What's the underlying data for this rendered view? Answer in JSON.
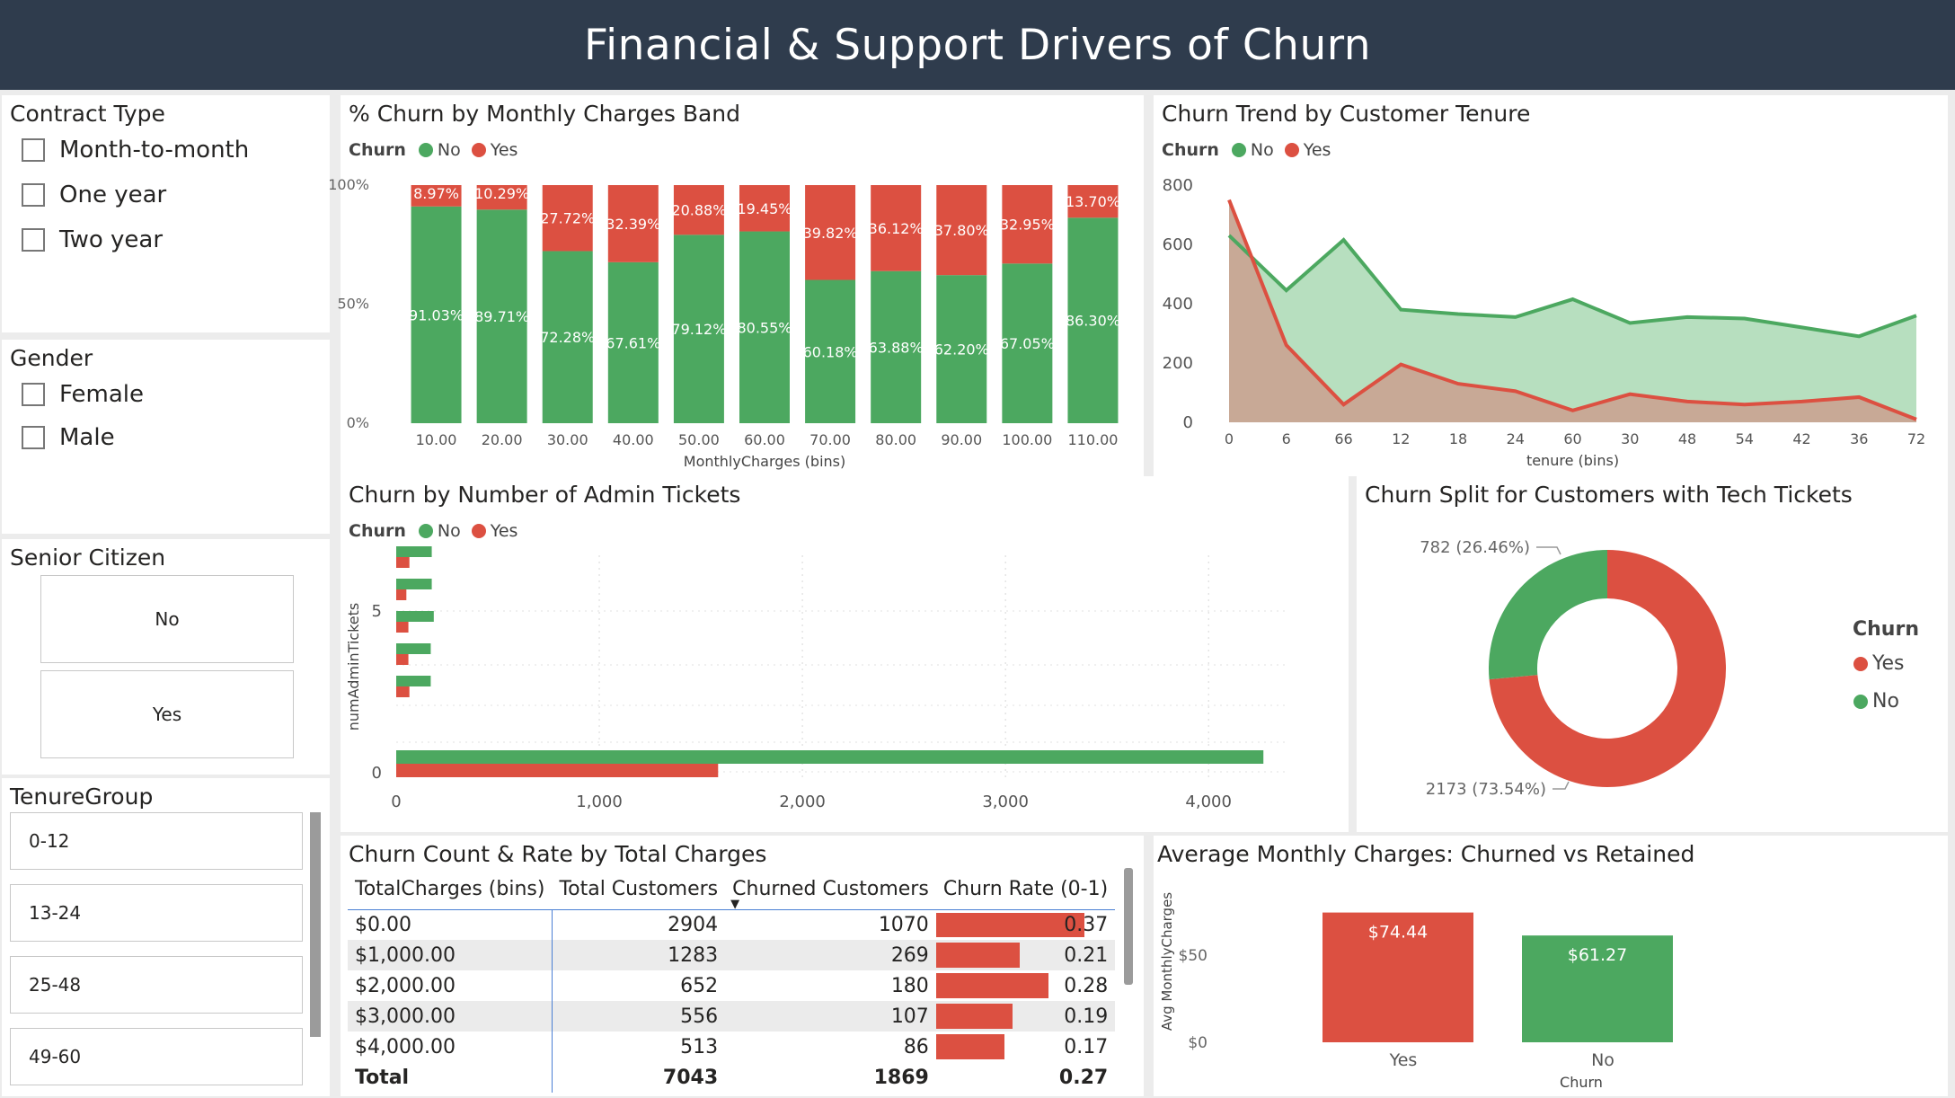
{
  "title": "Financial & Support Drivers of Churn",
  "colors": {
    "no": "#4ca860",
    "yes": "#dc5041",
    "header": "#2f3c4d",
    "no_area": "#b7dfbf",
    "yes_area": "#c8a594"
  },
  "filters": {
    "contract": {
      "title": "Contract Type",
      "options": [
        "Month-to-month",
        "One year",
        "Two year"
      ]
    },
    "gender": {
      "title": "Gender",
      "options": [
        "Female",
        "Male"
      ]
    },
    "senior": {
      "title": "Senior Citizen",
      "options": [
        "No",
        "Yes"
      ]
    },
    "tenure": {
      "title": "TenureGroup",
      "options": [
        "0-12",
        "13-24",
        "25-48",
        "49-60"
      ]
    }
  },
  "legend": {
    "title": "Churn",
    "no": "No",
    "yes": "Yes"
  },
  "chart_data": [
    {
      "id": "monthly_band",
      "type": "bar",
      "stacked": "100%",
      "title": "% Churn by Monthly Charges Band",
      "xlabel": "MonthlyCharges (bins)",
      "ylabel": "",
      "yticks": [
        "0%",
        "50%",
        "100%"
      ],
      "categories": [
        "10.00",
        "20.00",
        "30.00",
        "40.00",
        "50.00",
        "60.00",
        "70.00",
        "80.00",
        "90.00",
        "100.00",
        "110.00"
      ],
      "series": [
        {
          "name": "No",
          "values": [
            91.03,
            89.71,
            72.28,
            67.61,
            79.12,
            80.55,
            60.18,
            63.88,
            62.2,
            67.05,
            86.3
          ],
          "labels": [
            "91.03%",
            "89.71%",
            "72.28%",
            "67.61%",
            "79.12%",
            "80.55%",
            "60.18%",
            "63.88%",
            "62.20%",
            "67.05%",
            "86.30%"
          ]
        },
        {
          "name": "Yes",
          "values": [
            8.97,
            10.29,
            27.72,
            32.39,
            20.88,
            19.45,
            39.82,
            36.12,
            37.8,
            32.95,
            13.7
          ],
          "labels": [
            "8.97%",
            "10.29%",
            "27.72%",
            "32.39%",
            "20.88%",
            "19.45%",
            "39.82%",
            "36.12%",
            "37.80%",
            "32.95%",
            "13.70%"
          ]
        }
      ]
    },
    {
      "id": "tenure_trend",
      "type": "area",
      "title": "Churn Trend by Customer Tenure",
      "xlabel": "tenure (bins)",
      "ylabel": "",
      "categories": [
        "0",
        "6",
        "66",
        "12",
        "18",
        "24",
        "60",
        "30",
        "48",
        "54",
        "42",
        "36",
        "72"
      ],
      "ylim": [
        0,
        800
      ],
      "yticks": [
        "0",
        "200",
        "400",
        "600",
        "800"
      ],
      "series": [
        {
          "name": "No",
          "values": [
            630,
            445,
            615,
            380,
            365,
            355,
            415,
            335,
            355,
            350,
            320,
            290,
            360
          ]
        },
        {
          "name": "Yes",
          "values": [
            750,
            260,
            60,
            195,
            130,
            105,
            40,
            95,
            70,
            60,
            70,
            85,
            10
          ]
        }
      ]
    },
    {
      "id": "admin_tickets",
      "type": "bar",
      "orientation": "horizontal",
      "title": "Churn by Number of Admin Tickets",
      "xlabel": "",
      "ylabel": "numAdminTickets",
      "xlim": [
        0,
        4300
      ],
      "xticks": [
        "0",
        "1,000",
        "2,000",
        "3,000",
        "4,000"
      ],
      "yticks": [
        "0",
        "5"
      ],
      "categories": [
        0,
        1,
        2,
        3,
        4,
        5
      ],
      "series": [
        {
          "name": "No",
          "values": [
            4270,
            170,
            170,
            185,
            175,
            175
          ]
        },
        {
          "name": "Yes",
          "values": [
            1585,
            65,
            60,
            60,
            50,
            65
          ]
        }
      ]
    },
    {
      "id": "tech_tickets",
      "type": "pie",
      "donut": true,
      "title": "Churn Split for Customers with Tech Tickets",
      "slices": [
        {
          "name": "Yes",
          "value": 2173,
          "label": "2173 (73.54%)"
        },
        {
          "name": "No",
          "value": 782,
          "label": "782 (26.46%)"
        }
      ]
    },
    {
      "id": "total_charges_table",
      "type": "table",
      "title": "Churn Count & Rate by Total Charges",
      "columns": [
        "TotalCharges (bins)",
        "Total Customers",
        "Churned Customers",
        "Churn Rate (0-1)"
      ],
      "rows": [
        [
          "$0.00",
          2904,
          1070,
          0.37
        ],
        [
          "$1,000.00",
          1283,
          269,
          0.21
        ],
        [
          "$2,000.00",
          652,
          180,
          0.28
        ],
        [
          "$3,000.00",
          556,
          107,
          0.19
        ],
        [
          "$4,000.00",
          513,
          86,
          0.17
        ]
      ],
      "total": [
        "Total",
        7043,
        1869,
        0.27
      ]
    },
    {
      "id": "avg_monthly",
      "type": "bar",
      "title": "Average Monthly Charges: Churned vs Retained",
      "xlabel": "Churn",
      "ylabel": "Avg MonthlyCharges",
      "categories": [
        "Yes",
        "No"
      ],
      "values": [
        74.44,
        61.27
      ],
      "labels": [
        "$74.44",
        "$61.27"
      ],
      "yticks": [
        "$0",
        "$50"
      ]
    }
  ]
}
